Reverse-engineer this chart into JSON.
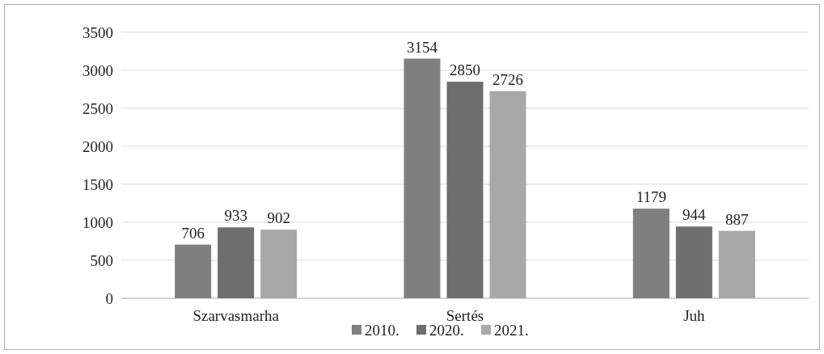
{
  "chart_data": {
    "type": "bar",
    "categories": [
      "Szarvasmarha",
      "Sertés",
      "Juh"
    ],
    "series": [
      {
        "name": "2010.",
        "color": "#7f7f7f",
        "values": [
          706,
          3154,
          1179
        ]
      },
      {
        "name": "2020.",
        "color": "#6e6e6e",
        "values": [
          933,
          2850,
          944
        ]
      },
      {
        "name": "2021.",
        "color": "#a8a8a8",
        "values": [
          902,
          2726,
          887
        ]
      }
    ],
    "ylim": [
      0,
      3500
    ],
    "yticks": [
      0,
      500,
      1000,
      1500,
      2000,
      2500,
      3000,
      3500
    ],
    "grid": "y",
    "legend": "bottom",
    "data_labels": true
  }
}
